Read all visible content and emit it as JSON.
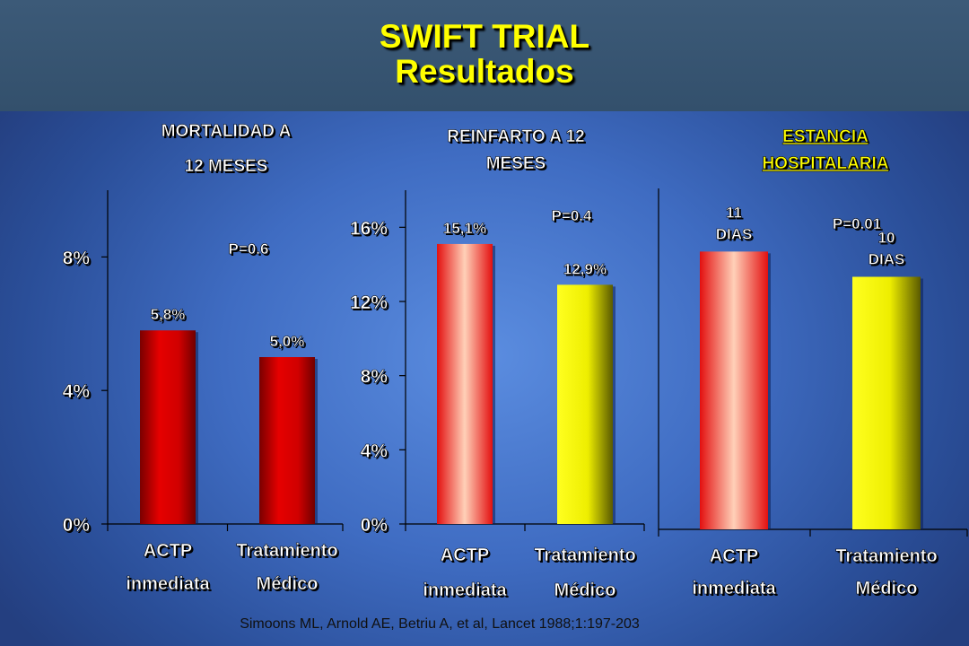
{
  "title_line1": "SWIFT TRIAL",
  "title_line2": "Resultados",
  "source": "Simoons ML, Arnold AE, Betriu A, et al, Lancet 1988;1:197-203",
  "colors": {
    "red": "#d40000",
    "yellow": "#ffff00",
    "title": "#ffff00"
  },
  "chart_data": [
    {
      "type": "bar",
      "title": [
        "MORTALIDAD A",
        "12 MESES"
      ],
      "categories": [
        [
          "ACTP",
          "inmediata"
        ],
        [
          "Tratamiento",
          "Médico"
        ]
      ],
      "values": [
        5.8,
        5.0
      ],
      "value_labels": [
        "5,8%",
        "5,0%"
      ],
      "bar_colors": [
        "red",
        "red"
      ],
      "ylim": [
        0,
        10
      ],
      "yticks": [
        0,
        4,
        8
      ],
      "ytick_labels": [
        "0%",
        "4%",
        "8%"
      ],
      "annotation": "P=0.6"
    },
    {
      "type": "bar",
      "title": [
        "REINFARTO A 12",
        "MESES"
      ],
      "categories": [
        [
          "ACTP",
          "inmediata"
        ],
        [
          "Tratamiento",
          "Médico"
        ]
      ],
      "values": [
        15.1,
        12.9
      ],
      "value_labels": [
        "15,1%",
        "12,9%"
      ],
      "bar_colors": [
        "pink",
        "yellow"
      ],
      "ylim": [
        0,
        18
      ],
      "yticks": [
        0,
        4,
        8,
        12,
        16
      ],
      "ytick_labels": [
        "0%",
        "4%",
        "8%",
        "12%",
        "16%"
      ],
      "annotation": "P=0.4"
    },
    {
      "type": "bar",
      "title": [
        "ESTANCIA",
        "HOSPITALARIA"
      ],
      "title_underline": true,
      "title_color": "yellow",
      "categories": [
        [
          "ACTP",
          "inmediata"
        ],
        [
          "Tratamiento",
          "Médico"
        ]
      ],
      "values": [
        11,
        10
      ],
      "value_labels": [
        [
          "11",
          "DIAS"
        ],
        [
          "10",
          "DIAS"
        ]
      ],
      "bar_colors": [
        "pink",
        "yellow"
      ],
      "ylim": [
        0,
        13.5
      ],
      "yticks": [],
      "ytick_labels": [],
      "annotation": "P=0.01"
    }
  ]
}
